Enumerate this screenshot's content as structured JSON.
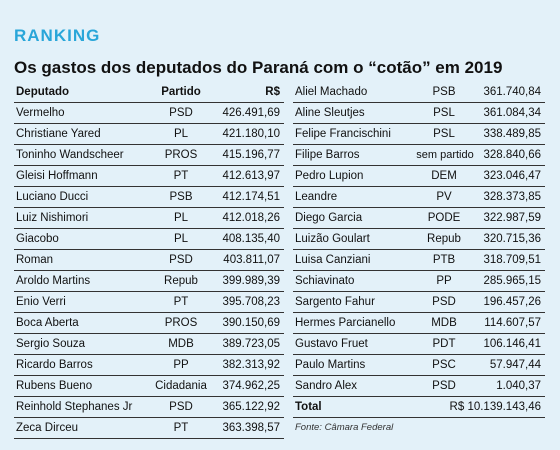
{
  "kicker": "RANKING",
  "title": "Os gastos dos deputados do Paraná com o “cotão” em 2019",
  "headers": {
    "name": "Deputado",
    "party": "Partido",
    "value": "R$"
  },
  "left": [
    {
      "name": "Vermelho",
      "party": "PSD",
      "value": "426.491,69"
    },
    {
      "name": "Christiane Yared",
      "party": "PL",
      "value": "421.180,10"
    },
    {
      "name": "Toninho Wandscheer",
      "party": "PROS",
      "value": "415.196,77"
    },
    {
      "name": "Gleisi Hoffmann",
      "party": "PT",
      "value": "412.613,97"
    },
    {
      "name": "Luciano Ducci",
      "party": "PSB",
      "value": "412.174,51"
    },
    {
      "name": "Luiz Nishimori",
      "party": "PL",
      "value": "412.018,26"
    },
    {
      "name": "Giacobo",
      "party": "PL",
      "value": "408.135,40"
    },
    {
      "name": "Roman",
      "party": "PSD",
      "value": "403.811,07"
    },
    {
      "name": "Aroldo Martins",
      "party": "Repub",
      "value": "399.989,39"
    },
    {
      "name": "Enio Verri",
      "party": "PT",
      "value": "395.708,23"
    },
    {
      "name": "Boca Aberta",
      "party": "PROS",
      "value": "390.150,69"
    },
    {
      "name": "Sergio Souza",
      "party": "MDB",
      "value": "389.723,05"
    },
    {
      "name": "Ricardo Barros",
      "party": "PP",
      "value": "382.313,92"
    },
    {
      "name": "Rubens Bueno",
      "party": "Cidadania",
      "value": "374.962,25"
    },
    {
      "name": "Reinhold Stephanes Jr",
      "party": "PSD",
      "value": "365.122,92"
    },
    {
      "name": "Zeca Dirceu",
      "party": "PT",
      "value": "363.398,57"
    }
  ],
  "right": [
    {
      "name": "Aliel Machado",
      "party": "PSB",
      "value": "361.740,84"
    },
    {
      "name": "Aline Sleutjes",
      "party": "PSL",
      "value": "361.084,34"
    },
    {
      "name": "Felipe Francischini",
      "party": "PSL",
      "value": "338.489,85"
    },
    {
      "name": "Filipe Barros",
      "party": "sem partido",
      "value": "328.840,66"
    },
    {
      "name": "Pedro Lupion",
      "party": "DEM",
      "value": "323.046,47"
    },
    {
      "name": "Leandre",
      "party": "PV",
      "value": "328.373,85"
    },
    {
      "name": "Diego Garcia",
      "party": "PODE",
      "value": "322.987,59"
    },
    {
      "name": "Luizão Goulart",
      "party": "Repub",
      "value": "320.715,36"
    },
    {
      "name": "Luisa Canziani",
      "party": "PTB",
      "value": "318.709,51"
    },
    {
      "name": "Schiavinato",
      "party": "PP",
      "value": "285.965,15"
    },
    {
      "name": "Sargento Fahur",
      "party": "PSD",
      "value": "196.457,26"
    },
    {
      "name": "Hermes Parcianello",
      "party": "MDB",
      "value": "114.607,57"
    },
    {
      "name": "Gustavo Fruet",
      "party": "PDT",
      "value": "106.146,41"
    },
    {
      "name": "Paulo Martins",
      "party": "PSC",
      "value": "57.947,44"
    },
    {
      "name": "Sandro Alex",
      "party": "PSD",
      "value": "1.040,37"
    }
  ],
  "total": {
    "label": "Total",
    "value": "R$ 10.139.143,46"
  },
  "source": "Fonte: Câmara Federal"
}
